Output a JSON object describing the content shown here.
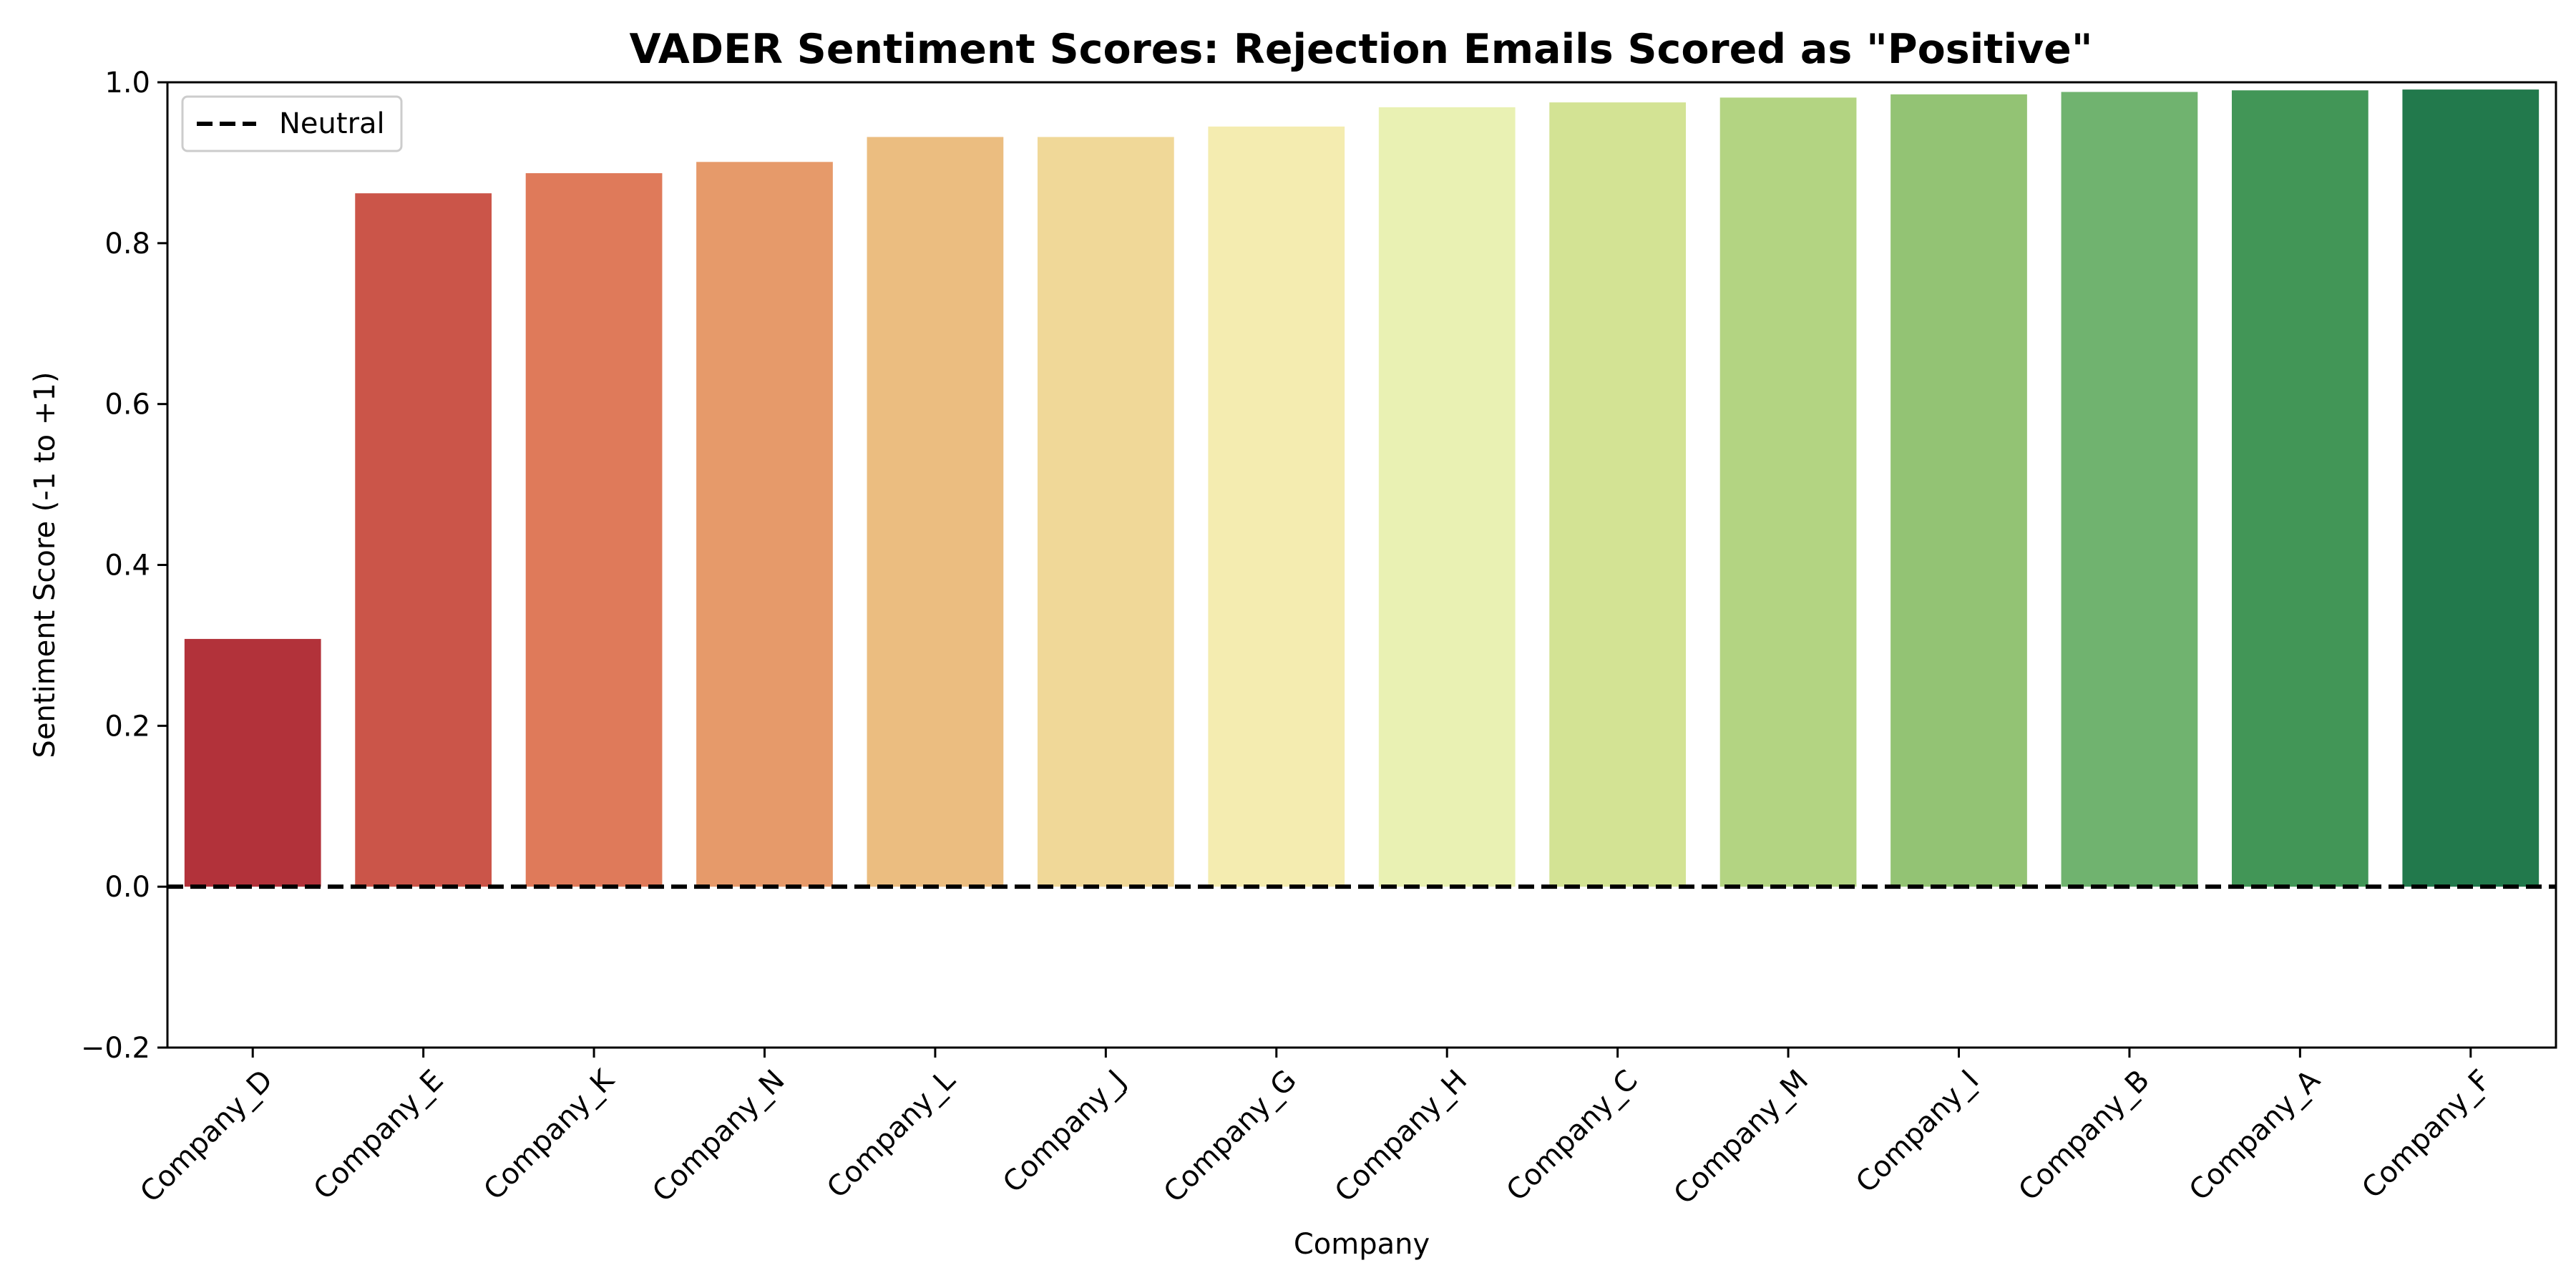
{
  "chart_data": {
    "type": "bar",
    "title": "VADER Sentiment Scores: Rejection Emails Scored as \"Positive\"",
    "xlabel": "Company",
    "ylabel": "Sentiment Score (-1 to +1)",
    "ylim": [
      -0.2,
      1.0
    ],
    "yticks": [
      -0.2,
      0.0,
      0.2,
      0.4,
      0.6,
      0.8,
      1.0
    ],
    "ytick_labels": [
      "−0.2",
      "0.0",
      "0.2",
      "0.4",
      "0.6",
      "0.8",
      "1.0"
    ],
    "categories": [
      "Company_D",
      "Company_E",
      "Company_K",
      "Company_N",
      "Company_L",
      "Company_J",
      "Company_G",
      "Company_H",
      "Company_C",
      "Company_M",
      "Company_I",
      "Company_B",
      "Company_A",
      "Company_F"
    ],
    "values": [
      0.308,
      0.862,
      0.887,
      0.901,
      0.932,
      0.932,
      0.945,
      0.969,
      0.975,
      0.981,
      0.985,
      0.988,
      0.99,
      0.991
    ],
    "colors": [
      "#b2323a",
      "#cb5549",
      "#df7a5a",
      "#e69a6a",
      "#ebbd80",
      "#f0d898",
      "#f4ecb0",
      "#e9f1b3",
      "#d3e394",
      "#b3d482",
      "#93c374",
      "#70b36f",
      "#429657",
      "#22794c"
    ],
    "grid": false,
    "reference_line": {
      "y": 0.0,
      "style": "dashed",
      "color": "#000000",
      "label": "Neutral"
    },
    "legend": {
      "position": "top-left",
      "entries": [
        "Neutral"
      ]
    }
  }
}
